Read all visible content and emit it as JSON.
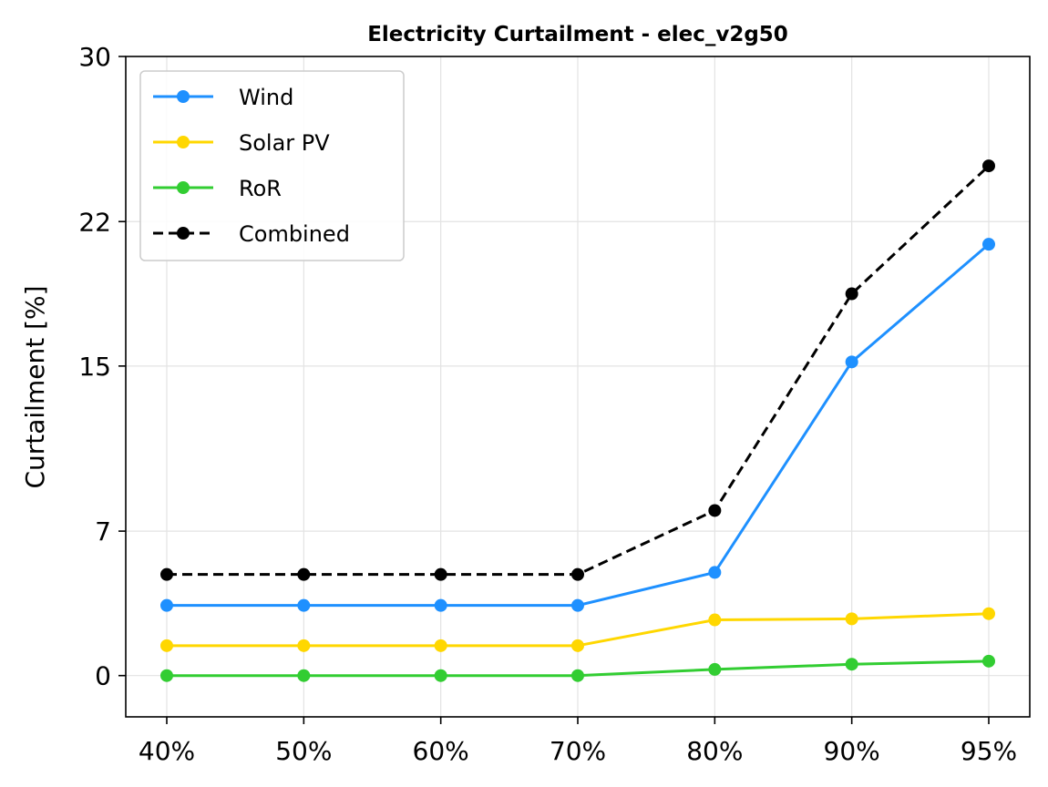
{
  "chart_data": {
    "type": "line",
    "title": "Electricity Curtailment - elec_v2g50",
    "xlabel": "",
    "ylabel": "Curtailment [%]",
    "categories": [
      "40%",
      "50%",
      "60%",
      "70%",
      "80%",
      "90%",
      "95%"
    ],
    "y_ticks": [
      "0",
      "7",
      "15",
      "22",
      "30"
    ],
    "ylim": [
      -2,
      30
    ],
    "grid": true,
    "legend_position": "top-left",
    "series": [
      {
        "name": "Wind",
        "color": "#1E90FF",
        "dashed": false,
        "values": [
          3.4,
          3.4,
          3.4,
          3.4,
          5.0,
          15.2,
          20.9
        ]
      },
      {
        "name": "Solar PV",
        "color": "#FFD700",
        "dashed": false,
        "values": [
          1.45,
          1.45,
          1.45,
          1.45,
          2.7,
          2.75,
          3.0
        ]
      },
      {
        "name": "RoR",
        "color": "#32CD32",
        "dashed": false,
        "values": [
          0.0,
          0.0,
          0.0,
          0.0,
          0.3,
          0.55,
          0.7
        ]
      },
      {
        "name": "Combined",
        "color": "#000000",
        "dashed": true,
        "values": [
          4.9,
          4.9,
          4.9,
          4.9,
          8.0,
          18.5,
          24.7
        ]
      }
    ]
  }
}
